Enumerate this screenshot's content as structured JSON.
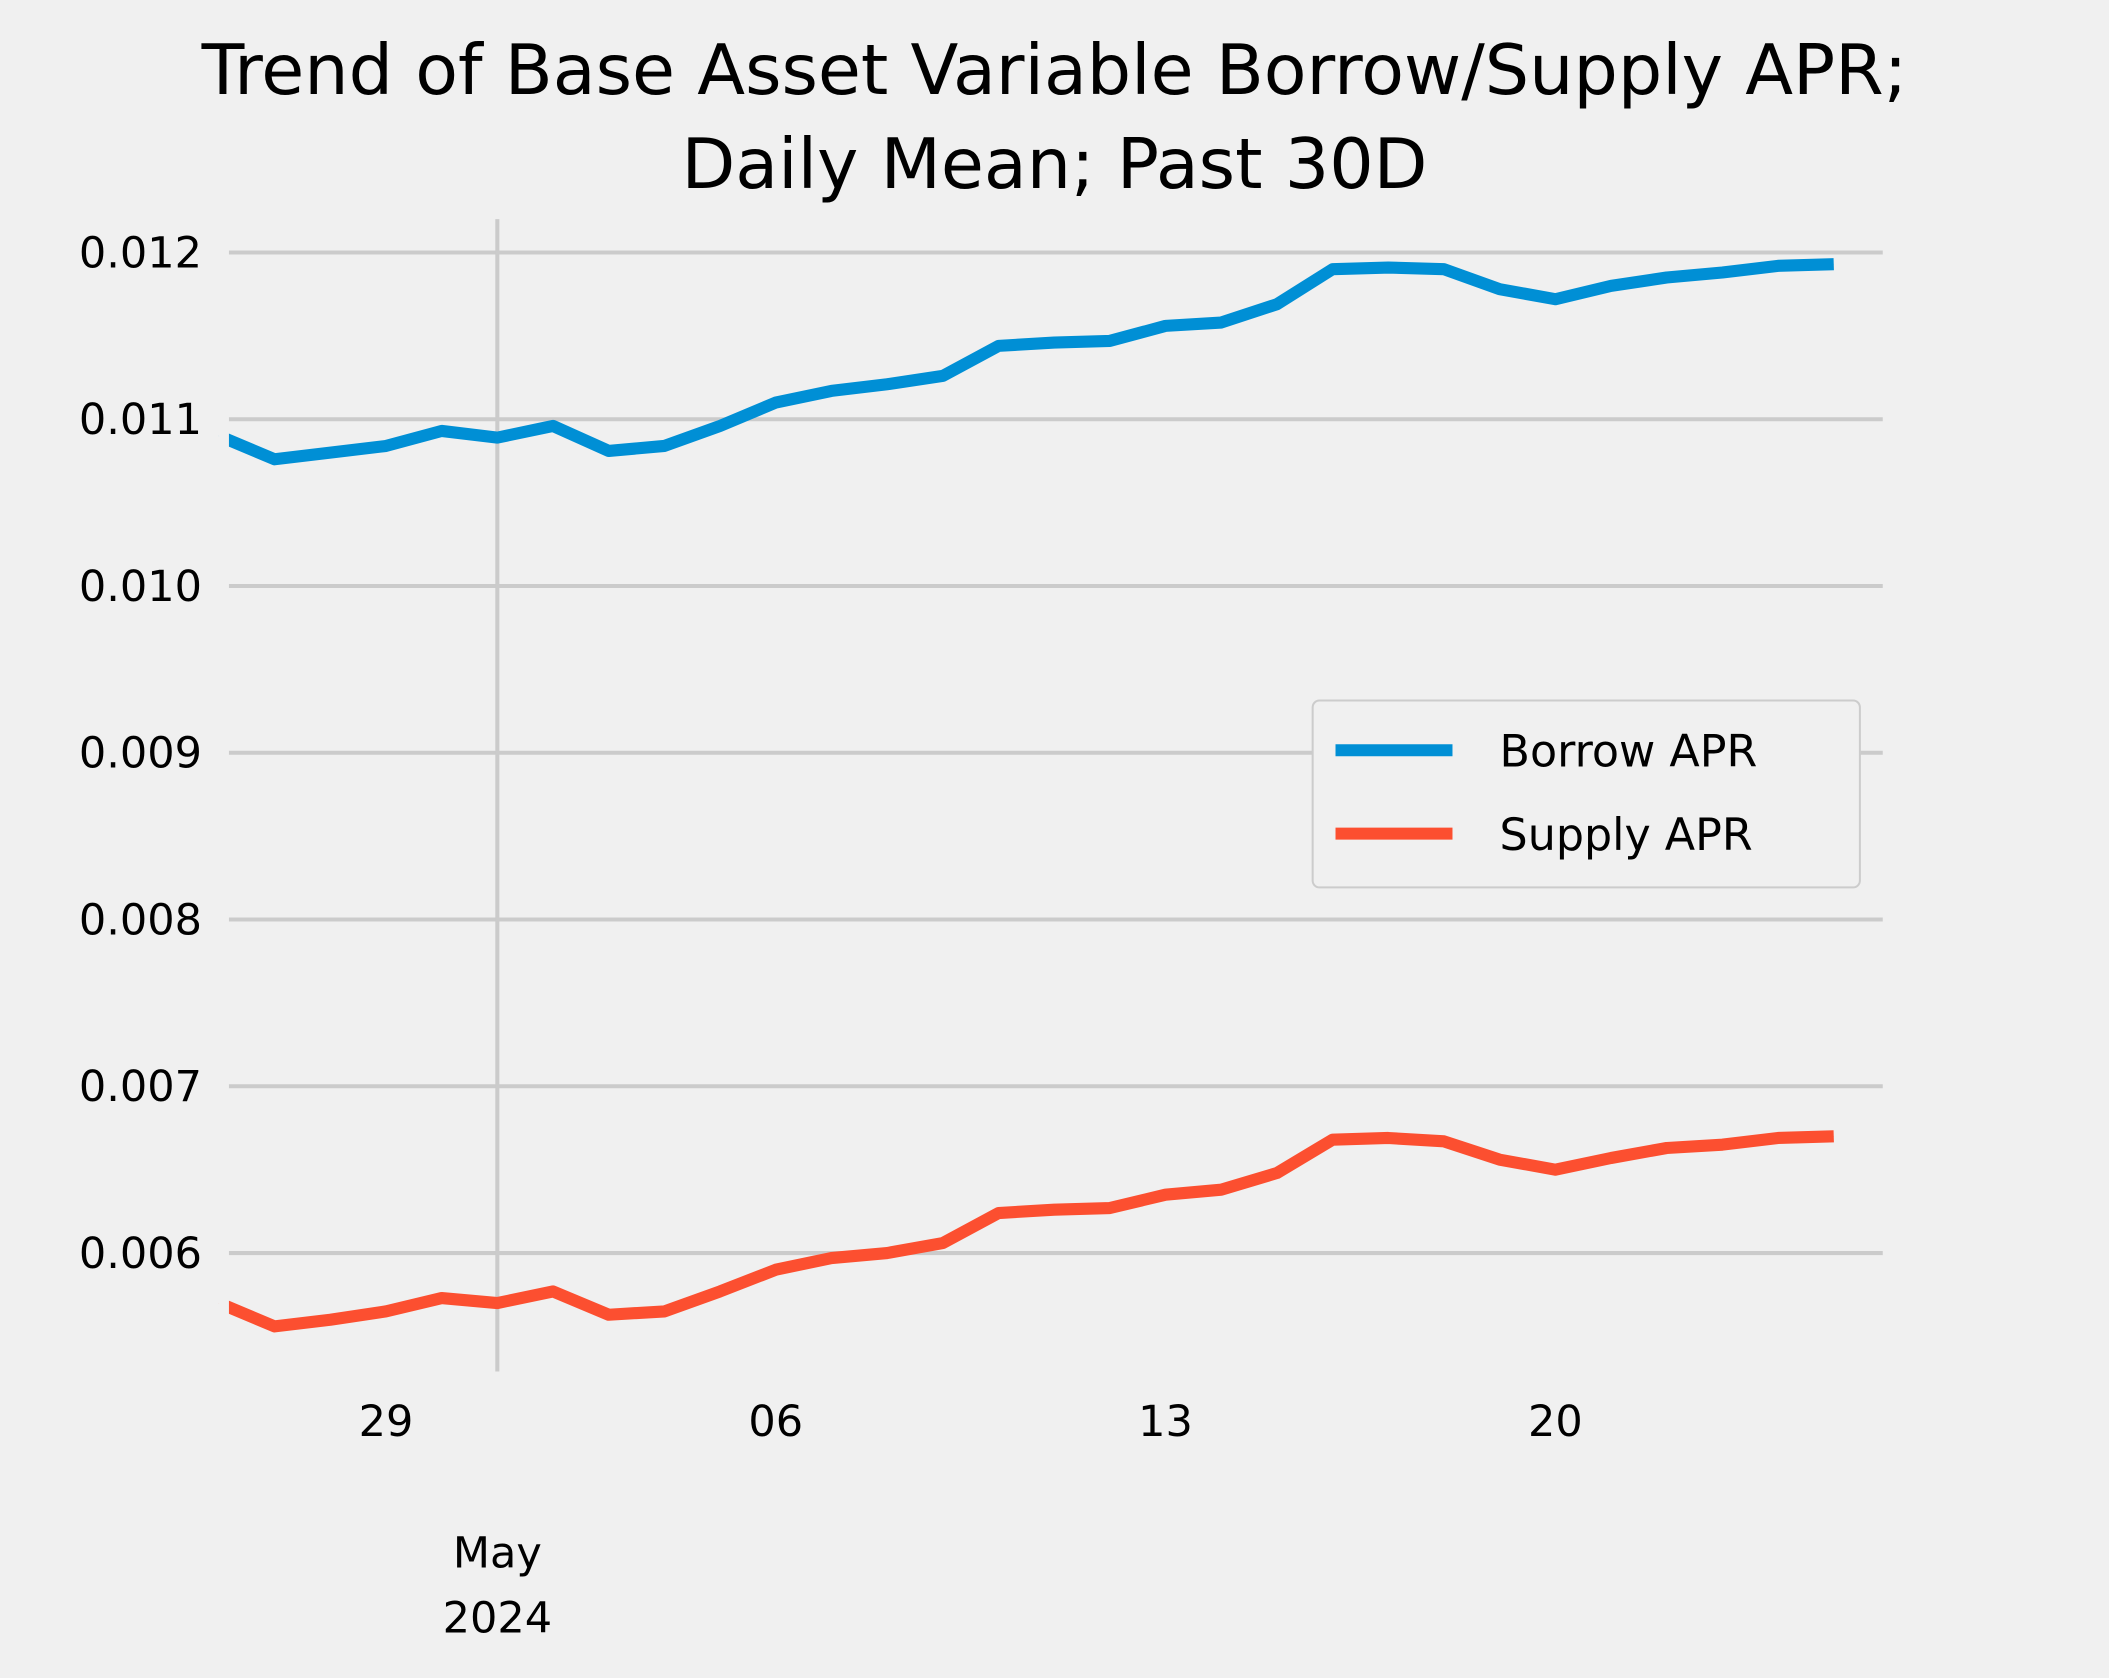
{
  "chart_data": {
    "type": "line",
    "title_lines": [
      "Trend of Base Asset Variable Borrow/Supply APR;",
      "Daily Mean; Past 30D"
    ],
    "xlabel": "",
    "ylabel": "",
    "x": [
      "2024-04-26",
      "2024-04-27",
      "2024-04-28",
      "2024-04-29",
      "2024-04-30",
      "2024-05-01",
      "2024-05-02",
      "2024-05-03",
      "2024-05-04",
      "2024-05-05",
      "2024-05-06",
      "2024-05-07",
      "2024-05-08",
      "2024-05-09",
      "2024-05-10",
      "2024-05-11",
      "2024-05-12",
      "2024-05-13",
      "2024-05-14",
      "2024-05-15",
      "2024-05-16",
      "2024-05-17",
      "2024-05-18",
      "2024-05-19",
      "2024-05-20",
      "2024-05-21",
      "2024-05-22",
      "2024-05-23",
      "2024-05-24",
      "2024-05-25"
    ],
    "series": [
      {
        "name": "Borrow APR",
        "color": "#008fd5",
        "values": [
          0.0109,
          0.01076,
          0.0108,
          0.01084,
          0.01093,
          0.01089,
          0.01096,
          0.01081,
          0.01084,
          0.01096,
          0.0111,
          0.01117,
          0.01121,
          0.01126,
          0.01144,
          0.01146,
          0.01147,
          0.01156,
          0.01158,
          0.01169,
          0.0119,
          0.01191,
          0.0119,
          0.01178,
          0.01172,
          0.0118,
          0.01185,
          0.01188,
          0.01192,
          0.01193
        ]
      },
      {
        "name": "Supply APR",
        "color": "#fc4f30",
        "values": [
          0.0057,
          0.00556,
          0.0056,
          0.00565,
          0.00573,
          0.0057,
          0.00577,
          0.00563,
          0.00565,
          0.00577,
          0.0059,
          0.00597,
          0.006,
          0.00606,
          0.00624,
          0.00626,
          0.00627,
          0.00635,
          0.00638,
          0.00648,
          0.00668,
          0.00669,
          0.00667,
          0.00656,
          0.0065,
          0.00657,
          0.00663,
          0.00665,
          0.00669,
          0.0067
        ]
      }
    ],
    "ylim": [
      0.00529,
      0.0122
    ],
    "xlim_days_from_first": [
      0.18,
      29.88
    ],
    "yticks": [
      "0.006",
      "0.007",
      "0.008",
      "0.009",
      "0.010",
      "0.011",
      "0.012"
    ],
    "xticks": [
      {
        "label": "29",
        "day": 3
      },
      {
        "label": "06",
        "day": 10
      },
      {
        "label": "13",
        "day": 17
      },
      {
        "label": "20",
        "day": 24
      }
    ],
    "month_marker": {
      "label_lines": [
        "May",
        "2024"
      ],
      "day": 5
    },
    "grid": true,
    "legend_position": "center-right"
  }
}
